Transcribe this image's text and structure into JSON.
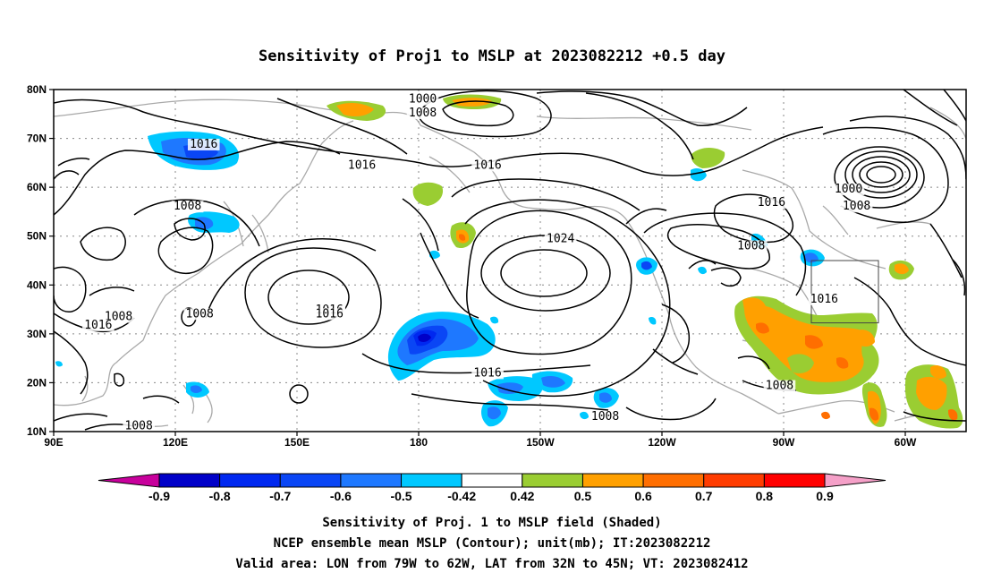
{
  "title": "Sensitivity of Proj1 to MSLP at 2023082212 +0.5 day",
  "lat_labels": [
    "80N",
    "70N",
    "60N",
    "50N",
    "40N",
    "30N",
    "20N",
    "10N"
  ],
  "lon_labels": [
    "90E",
    "120E",
    "150E",
    "180",
    "150W",
    "120W",
    "90W",
    "60W"
  ],
  "contour_labels": [
    {
      "text": "1000",
      "lon": 181,
      "lat": 77.3
    },
    {
      "text": "1008",
      "lon": 181,
      "lat": 74.5
    },
    {
      "text": "1016",
      "lon": 127,
      "lat": 68.1
    },
    {
      "text": "1016",
      "lon": 166,
      "lat": 63.8
    },
    {
      "text": "1016",
      "lon": 197,
      "lat": 63.8
    },
    {
      "text": "1000",
      "lon": 286,
      "lat": 58.9
    },
    {
      "text": "1008",
      "lon": 288,
      "lat": 55.4
    },
    {
      "text": "1016",
      "lon": 267,
      "lat": 56.2
    },
    {
      "text": "1008",
      "lon": 123,
      "lat": 55.4
    },
    {
      "text": "1024",
      "lon": 215,
      "lat": 48.8
    },
    {
      "text": "1008",
      "lon": 262,
      "lat": 47.3
    },
    {
      "text": "1016",
      "lon": 280,
      "lat": 36.4
    },
    {
      "text": "1016",
      "lon": 158,
      "lat": 34.2
    },
    {
      "text": "1016",
      "lon": 158,
      "lat": 33.4
    },
    {
      "text": "1008",
      "lon": 106,
      "lat": 32.8
    },
    {
      "text": "1016",
      "lon": 101,
      "lat": 31.1
    },
    {
      "text": "1008",
      "lon": 126,
      "lat": 33.4
    },
    {
      "text": "1016",
      "lon": 197,
      "lat": 21.3
    },
    {
      "text": "1008",
      "lon": 269,
      "lat": 18.7
    },
    {
      "text": "1008",
      "lon": 226,
      "lat": 12.4
    },
    {
      "text": "1008",
      "lon": 111,
      "lat": 10.5
    }
  ],
  "colorbar": {
    "levels": [
      "-0.9",
      "-0.8",
      "-0.7",
      "-0.6",
      "-0.5",
      "-0.42",
      "0.42",
      "0.5",
      "0.6",
      "0.7",
      "0.8",
      "0.9"
    ],
    "colors": [
      "#c8009c",
      "#0000c8",
      "#0028f0",
      "#0a46f5",
      "#1e78ff",
      "#00c8ff",
      "#ffffff",
      "#9acd32",
      "#ffa000",
      "#ff6e00",
      "#ff3c00",
      "#ff0000",
      "#f5a0c8"
    ]
  },
  "caption": {
    "line1": "Sensitivity of Proj. 1 to MSLP field (Shaded)",
    "line2": "NCEP ensemble mean MSLP (Contour); unit(mb); IT:2023082212",
    "line3": "Valid area: LON from 79W to 62W, LAT from 32N to 45N; VT: 2023082412"
  },
  "valid_box": {
    "lon_min": 281,
    "lon_max": 298,
    "lat_min": 32,
    "lat_max": 45
  }
}
